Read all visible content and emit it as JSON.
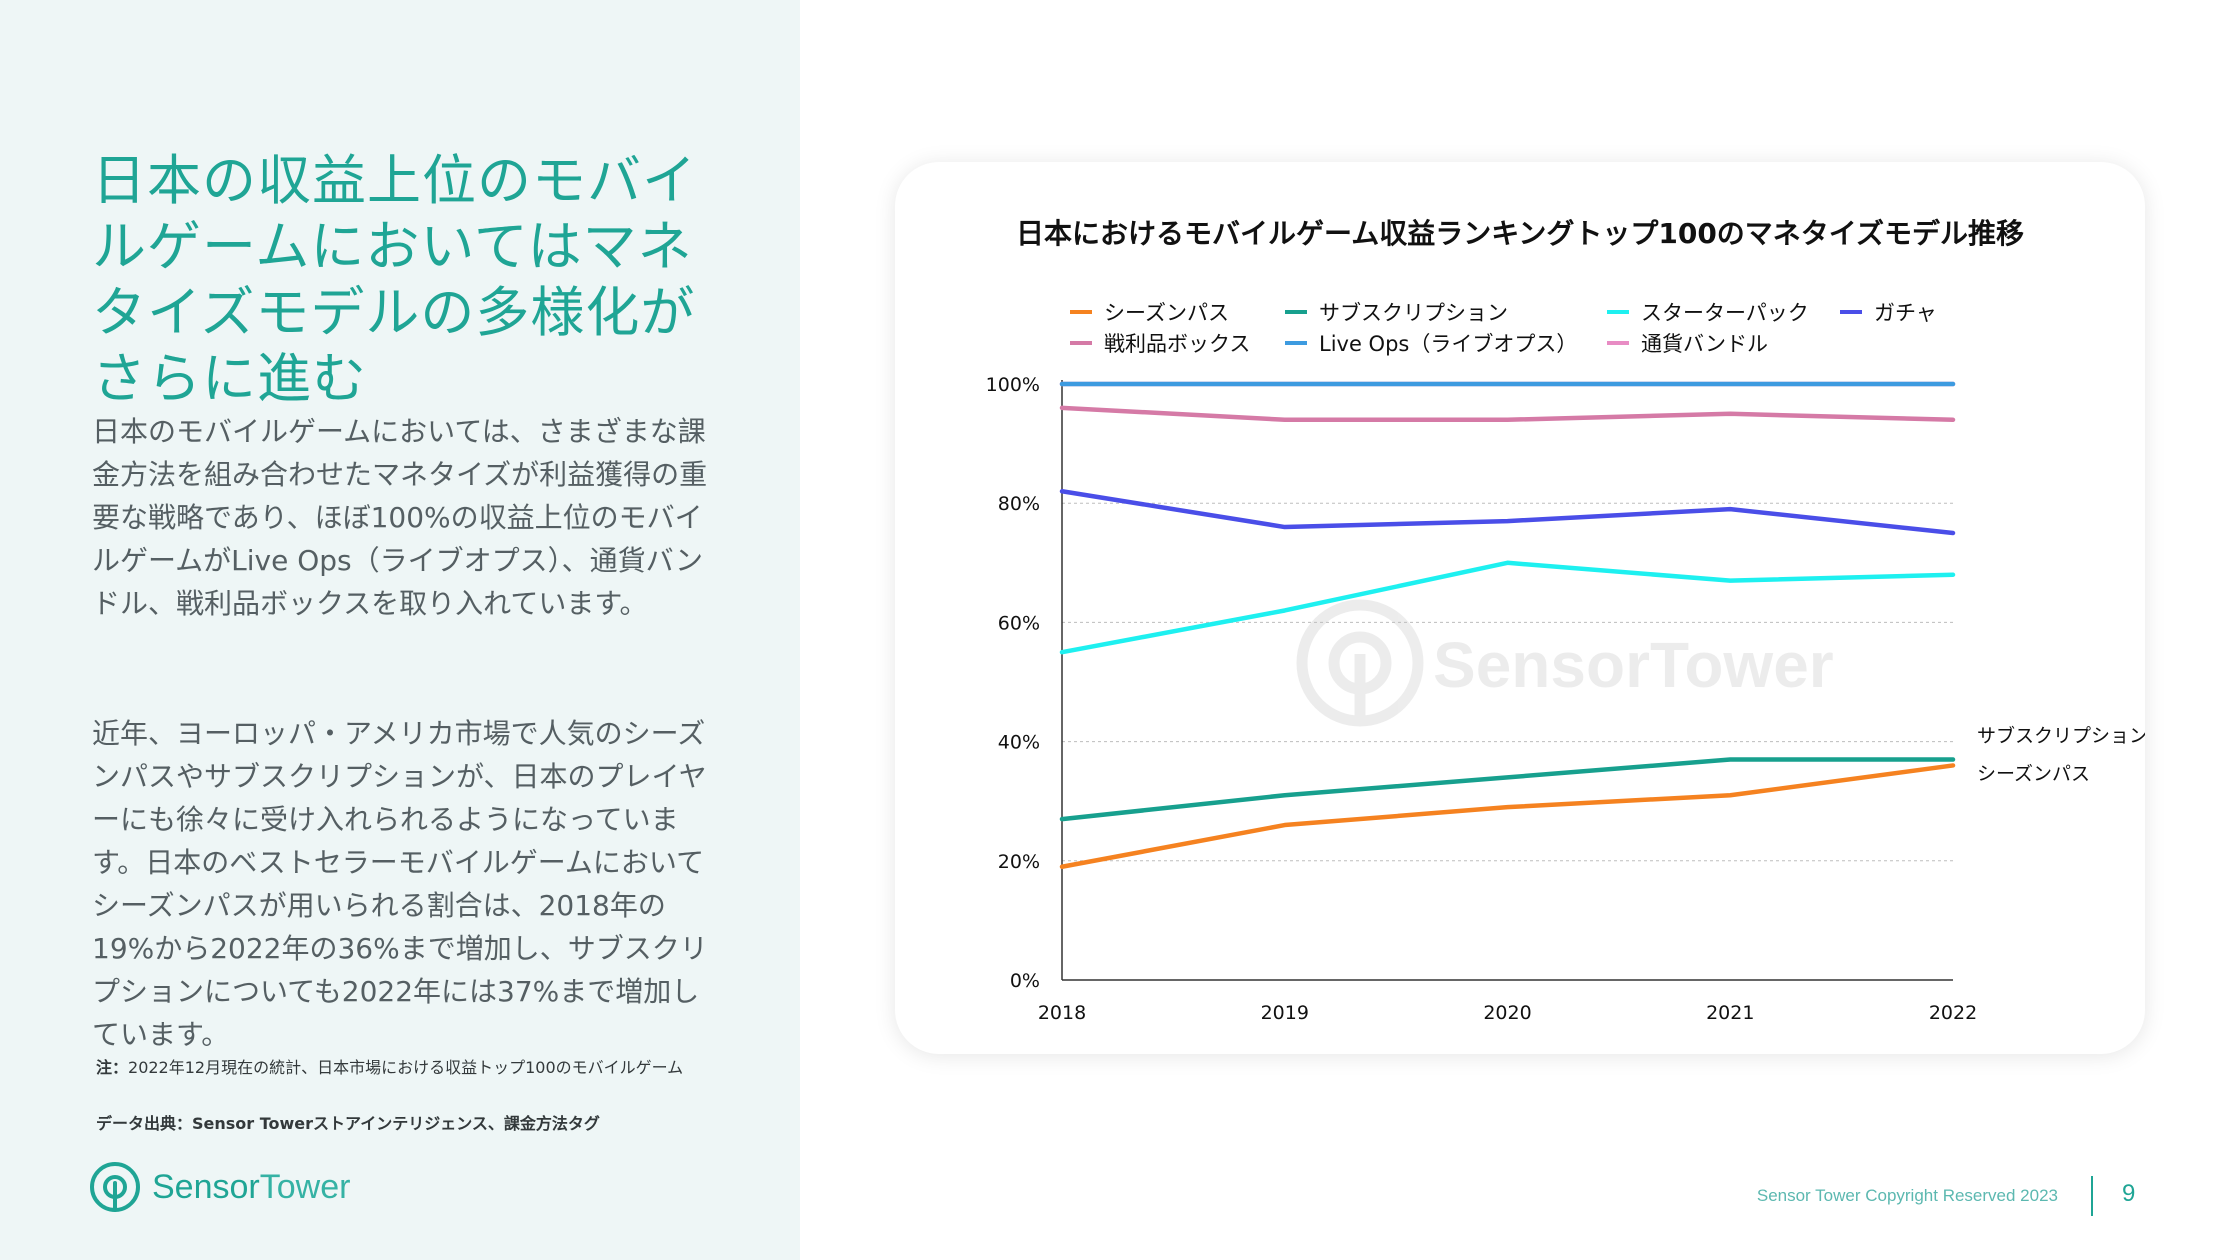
{
  "headline": "日本の収益上位のモバイルゲームにおいてはマネタイズモデルの多様化がさらに進む",
  "paragraph1": "日本のモバイルゲームにおいては、さまざまな課金方法を組み合わせたマネタイズが利益獲得の重要な戦略であり、ほぼ100%の収益上位のモバイルゲームがLive Ops（ライブオプス）、通貨バンドル、戦利品ボックスを取り入れています。",
  "paragraph2": "近年、ヨーロッパ・アメリカ市場で人気のシーズンパスやサブスクリプションが、日本のプレイヤーにも徐々に受け入れられるようになっています。日本のベストセラーモバイルゲームにおいてシーズンパスが用いられる割合は、2018年の19%から2022年の36%まで増加し、サブスクリプションについても2022年には37%まで増加しています。",
  "note": {
    "label": "注：",
    "text": "2022年12月現在の統計、日本市場における収益トップ100のモバイルゲーム"
  },
  "source": "データ出典：Sensor Towerストアインテリジェンス、課金方法タグ",
  "brand": {
    "name1": "Sensor",
    "name2": "Tower"
  },
  "footer": {
    "copyright": "Sensor Tower Copyright Reserved 2023",
    "page_number": "9"
  },
  "chart_data": {
    "type": "line",
    "title": "日本におけるモバイルゲーム収益ランキングトップ100のマネタイズモデル推移",
    "xlabel": "",
    "ylabel": "",
    "categories": [
      "2018",
      "2019",
      "2020",
      "2021",
      "2022"
    ],
    "ylim": [
      0,
      100
    ],
    "yticks": [
      "0%",
      "20%",
      "40%",
      "60%",
      "80%",
      "100%"
    ],
    "grid": "horizontal dotted",
    "legend_position": "top",
    "watermark": "SensorTower",
    "series": [
      {
        "name": "シーズンパス",
        "color": "#f58220",
        "values": [
          19,
          26,
          29,
          31,
          36
        ]
      },
      {
        "name": "サブスクリプション",
        "color": "#17a08e",
        "values": [
          27,
          31,
          34,
          37,
          37
        ]
      },
      {
        "name": "スターターパック",
        "color": "#1ef0f0",
        "values": [
          55,
          62,
          70,
          67,
          68
        ]
      },
      {
        "name": "ガチャ",
        "color": "#4a4ee8",
        "values": [
          82,
          76,
          77,
          79,
          75
        ]
      },
      {
        "name": "戦利品ボックス",
        "color": "#d57aa6",
        "values": [
          96,
          94,
          94,
          95,
          94
        ]
      },
      {
        "name": "Live Ops（ライブオプス）",
        "color": "#3d9be0",
        "values": [
          100,
          100,
          100,
          100,
          100
        ]
      },
      {
        "name": "通貨バンドル",
        "color": "#e88cc4",
        "values": [
          100,
          100,
          100,
          100,
          100
        ]
      }
    ],
    "annotations": [
      "サブスクリプション",
      "シーズンパス"
    ]
  }
}
